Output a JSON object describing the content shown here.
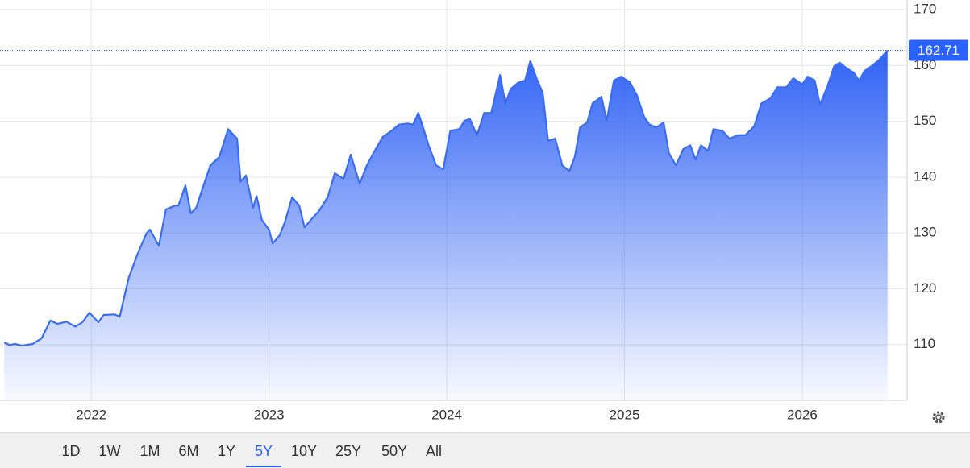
{
  "chart_data": {
    "type": "area",
    "x": [
      2021.51,
      2021.54,
      2021.57,
      2021.61,
      2021.67,
      2021.72,
      2021.77,
      2021.81,
      2021.86,
      2021.91,
      2021.95,
      2021.99,
      2022.04,
      2022.07,
      2022.13,
      2022.16,
      2022.21,
      2022.26,
      2022.31,
      2022.33,
      2022.38,
      2022.42,
      2022.47,
      2022.49,
      2022.53,
      2022.56,
      2022.59,
      2022.62,
      2022.67,
      2022.72,
      2022.77,
      2022.82,
      2022.84,
      2022.87,
      2022.91,
      2022.93,
      2022.96,
      2023.0,
      2023.02,
      2023.06,
      2023.09,
      2023.13,
      2023.17,
      2023.2,
      2023.24,
      2023.28,
      2023.33,
      2023.37,
      2023.42,
      2023.46,
      2023.51,
      2023.55,
      2023.6,
      2023.64,
      2023.69,
      2023.73,
      2023.78,
      2023.81,
      2023.84,
      2023.87,
      2023.9,
      2023.94,
      2023.98,
      2024.02,
      2024.07,
      2024.1,
      2024.13,
      2024.17,
      2024.21,
      2024.25,
      2024.3,
      2024.33,
      2024.36,
      2024.4,
      2024.44,
      2024.47,
      2024.51,
      2024.54,
      2024.57,
      2024.61,
      2024.65,
      2024.69,
      2024.72,
      2024.75,
      2024.79,
      2024.82,
      2024.87,
      2024.9,
      2024.94,
      2024.98,
      2025.03,
      2025.07,
      2025.11,
      2025.14,
      2025.18,
      2025.22,
      2025.25,
      2025.29,
      2025.33,
      2025.37,
      2025.4,
      2025.43,
      2025.47,
      2025.5,
      2025.55,
      2025.59,
      2025.64,
      2025.68,
      2025.73,
      2025.77,
      2025.82,
      2025.86,
      2025.91,
      2025.95,
      2026.0,
      2026.03,
      2026.07,
      2026.1,
      2026.14,
      2026.18,
      2026.21,
      2026.25,
      2026.29,
      2026.32,
      2026.35,
      2026.39,
      2026.43,
      2026.48
    ],
    "values": [
      110.4,
      109.9,
      110.1,
      109.8,
      110.1,
      111.1,
      114.3,
      113.7,
      114.1,
      113.2,
      114.0,
      115.7,
      114.0,
      115.3,
      115.4,
      115.0,
      121.9,
      126.2,
      129.9,
      130.6,
      127.7,
      134.2,
      134.9,
      134.9,
      138.5,
      133.5,
      134.5,
      137.4,
      142.1,
      143.6,
      148.6,
      146.9,
      139.2,
      140.3,
      134.5,
      136.6,
      132.3,
      130.6,
      128.1,
      129.6,
      132.0,
      136.4,
      134.9,
      131.0,
      132.5,
      133.9,
      136.4,
      140.7,
      139.7,
      144.0,
      138.8,
      142.1,
      145.0,
      147.2,
      148.3,
      149.4,
      149.6,
      149.4,
      151.5,
      148.6,
      145.5,
      142.1,
      141.4,
      148.3,
      148.6,
      150.1,
      150.4,
      147.5,
      151.5,
      151.5,
      158.3,
      153.2,
      155.8,
      156.9,
      157.3,
      160.8,
      157.3,
      155.1,
      146.5,
      146.9,
      142.1,
      141.1,
      143.6,
      148.9,
      149.8,
      153.2,
      154.4,
      150.1,
      157.3,
      158.0,
      157.0,
      154.7,
      150.8,
      149.4,
      148.9,
      149.8,
      144.3,
      142.1,
      145.0,
      145.7,
      143.1,
      145.7,
      144.7,
      148.6,
      148.3,
      146.9,
      147.5,
      147.5,
      149.1,
      153.2,
      154.1,
      156.1,
      156.1,
      157.7,
      156.6,
      158.0,
      157.3,
      153.0,
      156.1,
      159.9,
      160.5,
      159.5,
      158.7,
      157.3,
      159.0,
      159.9,
      160.9,
      162.71
    ],
    "color": "#3a6df0",
    "xlim": [
      2021.5,
      2026.59
    ],
    "xticks": [
      2022,
      2023,
      2024,
      2025,
      2026
    ],
    "ylim": [
      100,
      170
    ],
    "yticks": [
      110,
      120,
      130,
      140,
      150,
      160,
      170
    ],
    "grid": true,
    "range_buttons": [
      "1D",
      "1W",
      "1M",
      "6M",
      "1Y",
      "5Y",
      "10Y",
      "25Y",
      "50Y",
      "All"
    ],
    "active_range": "5Y"
  }
}
